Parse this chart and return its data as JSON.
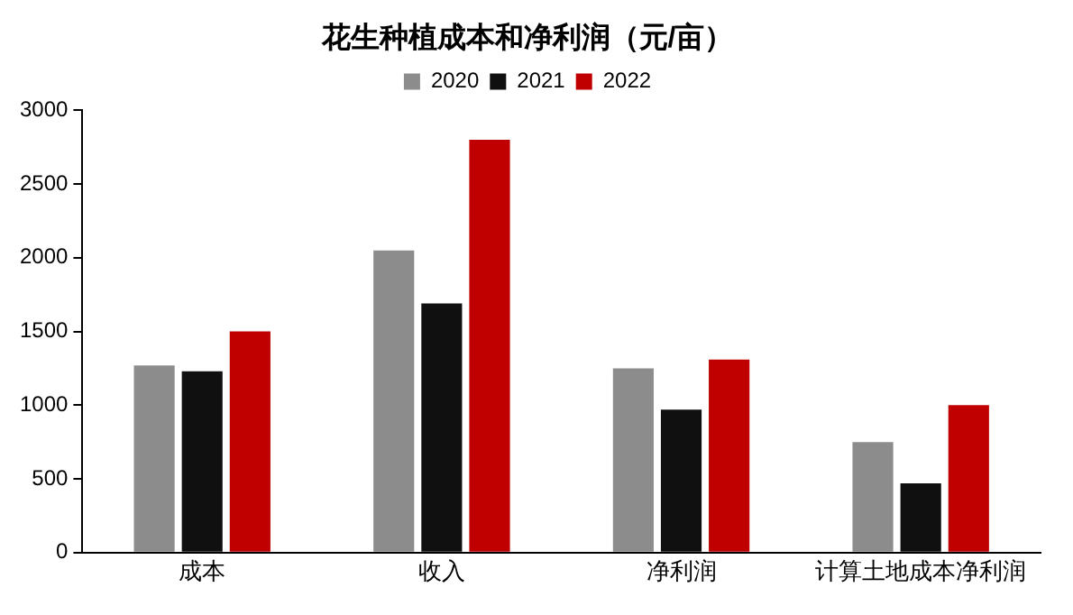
{
  "chart_data": {
    "type": "bar",
    "title": "花生种植成本和净利润（元/亩）",
    "categories": [
      "成本",
      "收入",
      "净利润",
      "计算土地成本净利润"
    ],
    "series": [
      {
        "name": "2020",
        "color": "#8c8c8c",
        "values": [
          1270,
          2050,
          1250,
          750
        ]
      },
      {
        "name": "2021",
        "color": "#101010",
        "values": [
          1230,
          1690,
          970,
          470
        ]
      },
      {
        "name": "2022",
        "color": "#c00000",
        "values": [
          1500,
          2800,
          1310,
          1000
        ]
      }
    ],
    "ylim": [
      0,
      3000
    ],
    "yticks": [
      0,
      500,
      1000,
      1500,
      2000,
      2500,
      3000
    ],
    "grid": false,
    "legend": "top"
  }
}
